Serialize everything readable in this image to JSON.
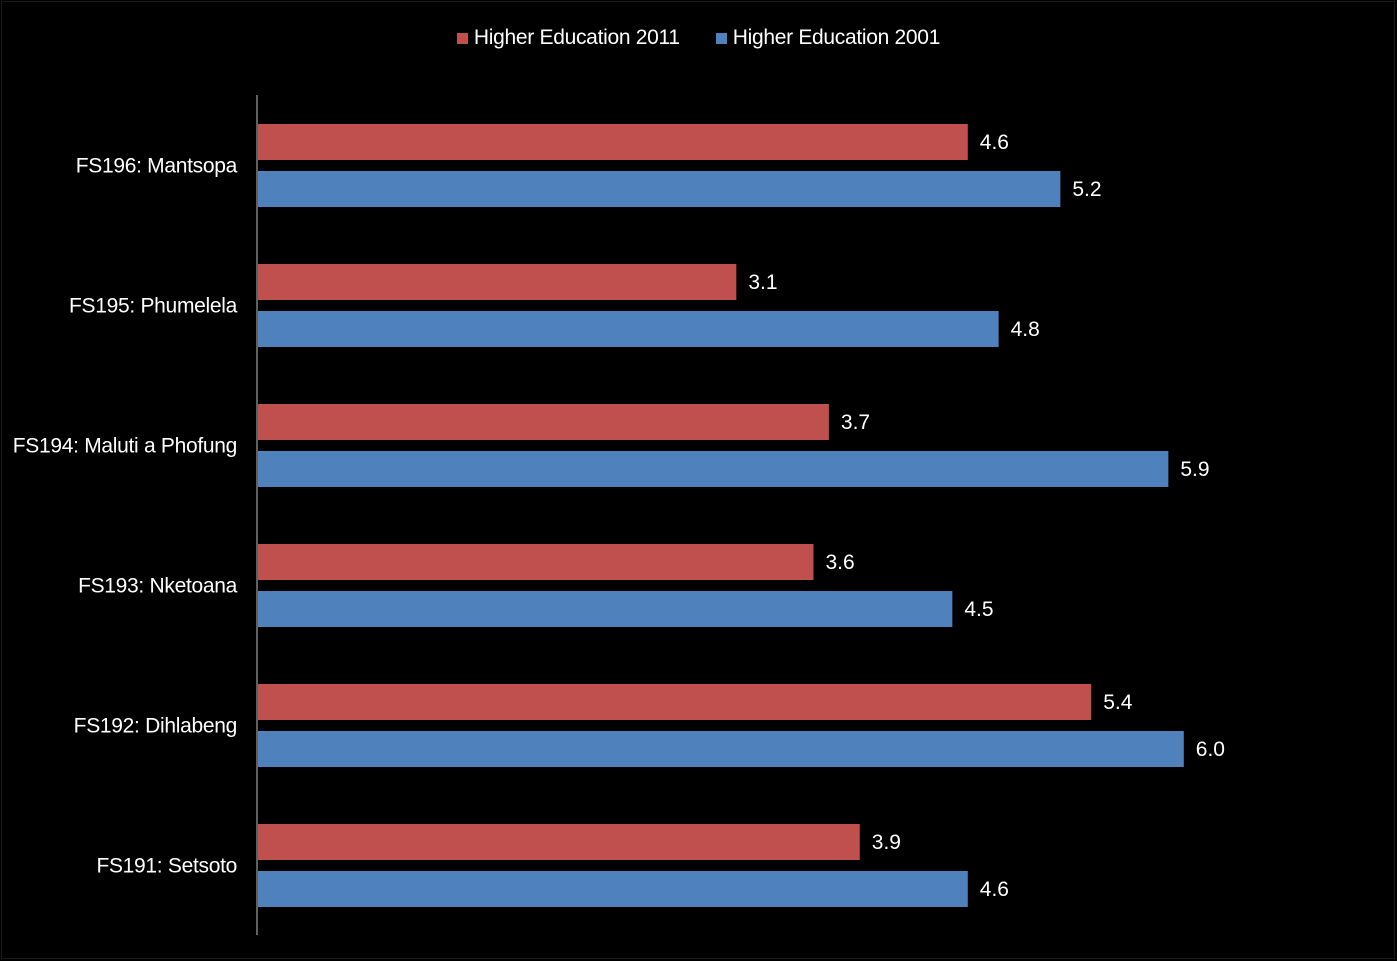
{
  "chart_data": {
    "type": "bar",
    "orientation": "horizontal",
    "categories": [
      "FS196: Mantsopa",
      "FS195: Phumelela",
      "FS194: Maluti a Phofung",
      "FS193: Nketoana",
      "FS192: Dihlabeng",
      "FS191: Setsoto"
    ],
    "series": [
      {
        "name": "Higher Education 2011",
        "color": "#C0504D",
        "values": [
          4.6,
          3.1,
          3.7,
          3.6,
          5.4,
          3.9
        ],
        "labels": [
          "4.6",
          "3.1",
          "3.7",
          "3.6",
          "5.4",
          "3.9"
        ]
      },
      {
        "name": "Higher Education 2001",
        "color": "#4F81BD",
        "values": [
          5.2,
          4.8,
          5.9,
          4.5,
          6.0,
          4.6
        ],
        "labels": [
          "5.2",
          "4.8",
          "5.9",
          "4.5",
          "6.0",
          "4.6"
        ]
      }
    ],
    "title": "",
    "xlabel": "",
    "ylabel": "",
    "xlim": [
      0,
      7
    ],
    "grid": false,
    "legend_position": "top",
    "background": "#000000"
  }
}
